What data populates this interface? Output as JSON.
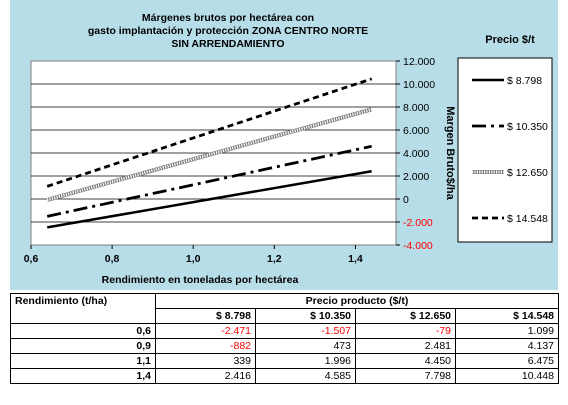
{
  "chart_data": {
    "type": "line",
    "title_lines": [
      "Márgenes brutos por hectárea con",
      "gasto implantación y protección ZONA CENTRO NORTE",
      "SIN ARRENDAMIENTO"
    ],
    "xlabel": "Rendimiento en toneladas por hectárea",
    "ylabel": "Margen Bruto$/ha",
    "xlim": [
      0.6,
      1.5
    ],
    "ylim": [
      -4000,
      12000
    ],
    "x_ticks": [
      "0,6",
      "0,8",
      "1,0",
      "1,2",
      "1,4"
    ],
    "y_ticks": [
      "12.000",
      "10.000",
      "8.000",
      "6.000",
      "4.000",
      "2.000",
      "0",
      "-2.000",
      "-4.000"
    ],
    "y_tick_values": [
      12000,
      10000,
      8000,
      6000,
      4000,
      2000,
      0,
      -2000,
      -4000
    ],
    "x_tick_values": [
      0.6,
      0.8,
      1.0,
      1.2,
      1.4
    ],
    "legend_title": "Precio $/t",
    "legend_position": "right",
    "grid": "horizontal",
    "series": [
      {
        "name": "$ 8.798",
        "style": "solid",
        "color": "#000000",
        "x": [
          0.64,
          1.44
        ],
        "y": [
          -2471,
          2416
        ]
      },
      {
        "name": "$ 10.350",
        "style": "dashdot",
        "color": "#000000",
        "x": [
          0.64,
          1.44
        ],
        "y": [
          -1507,
          4585
        ]
      },
      {
        "name": "$ 12.650",
        "style": "hatched",
        "color": "#ffffff",
        "x": [
          0.64,
          1.44
        ],
        "y": [
          -79,
          7798
        ]
      },
      {
        "name": "$ 14.548",
        "style": "dashed",
        "color": "#000000",
        "x": [
          0.64,
          1.44
        ],
        "y": [
          1099,
          10448
        ]
      }
    ]
  },
  "table": {
    "rend_header": "Rendimiento (t/ha)",
    "price_header": "Precio producto ($/t)",
    "columns": [
      "$ 8.798",
      "$ 10.350",
      "$ 12.650",
      "$ 14.548"
    ],
    "rows": [
      {
        "label": "0,6",
        "values": [
          "-2.471",
          "-1.507",
          "-79",
          "1.099"
        ],
        "neg": [
          true,
          true,
          true,
          false
        ]
      },
      {
        "label": "0,9",
        "values": [
          "-882",
          "473",
          "2.481",
          "4.137"
        ],
        "neg": [
          true,
          false,
          false,
          false
        ]
      },
      {
        "label": "1,1",
        "values": [
          "339",
          "1.996",
          "4.450",
          "6.475"
        ],
        "neg": [
          false,
          false,
          false,
          false
        ]
      },
      {
        "label": "1,4",
        "values": [
          "2.416",
          "4.585",
          "7.798",
          "10.448"
        ],
        "neg": [
          false,
          false,
          false,
          false
        ]
      }
    ]
  },
  "colors": {
    "panel": "#b7dde8",
    "plot": "#ffffff",
    "negative": "#ff0000"
  }
}
